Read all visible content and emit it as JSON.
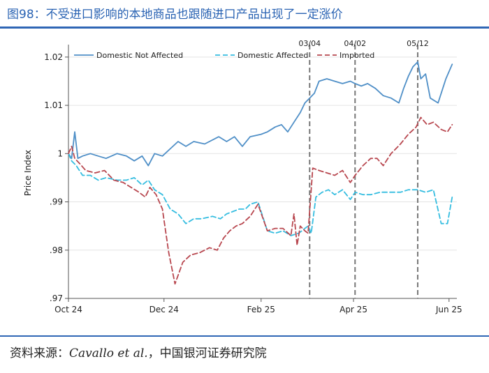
{
  "figure": {
    "title": "图98：不受进口影响的本地商品也跟随进口产品出现了一定涨价",
    "source_prefix": "资料来源：",
    "source_author": "Cavallo et al.",
    "source_suffix": "，中国银河证券研究院"
  },
  "chart_data": {
    "type": "line",
    "ylabel": "Price Index",
    "ylim": [
      0.97,
      1.022
    ],
    "yticks": [
      0.97,
      0.98,
      0.99,
      1.0,
      1.01,
      1.02
    ],
    "ytick_labels": [
      ".97",
      ".98",
      ".99",
      "1",
      "1.01",
      "1.02"
    ],
    "xlim": [
      "2024-10-01",
      "2025-06-06"
    ],
    "xticks": [
      "2024-10-01",
      "2024-12-01",
      "2025-02-01",
      "2025-04-01",
      "2025-06-01"
    ],
    "xtick_labels": [
      "Oct 24",
      "Dec 24",
      "Feb 25",
      "Apr 25",
      "Jun 25"
    ],
    "grid": true,
    "legend_position": "top",
    "vlines": [
      {
        "date": "2025-03-04",
        "label": "03/04"
      },
      {
        "date": "2025-04-02",
        "label": "04/02"
      },
      {
        "date": "2025-05-12",
        "label": "05/12"
      }
    ],
    "series": [
      {
        "name": "Domestic Not Affected",
        "color": "#4f8fc7",
        "style": "solid",
        "x": [
          "2024-10-01",
          "2024-10-03",
          "2024-10-05",
          "2024-10-07",
          "2024-10-10",
          "2024-10-15",
          "2024-10-20",
          "2024-10-25",
          "2024-11-01",
          "2024-11-07",
          "2024-11-12",
          "2024-11-17",
          "2024-11-21",
          "2024-11-25",
          "2024-11-30",
          "2024-12-05",
          "2024-12-10",
          "2024-12-15",
          "2024-12-20",
          "2024-12-27",
          "2025-01-05",
          "2025-01-10",
          "2025-01-15",
          "2025-01-20",
          "2025-01-25",
          "2025-02-01",
          "2025-02-05",
          "2025-02-10",
          "2025-02-14",
          "2025-02-18",
          "2025-02-22",
          "2025-02-26",
          "2025-03-01",
          "2025-03-04",
          "2025-03-07",
          "2025-03-10",
          "2025-03-15",
          "2025-03-20",
          "2025-03-25",
          "2025-03-30",
          "2025-04-02",
          "2025-04-06",
          "2025-04-10",
          "2025-04-15",
          "2025-04-20",
          "2025-04-25",
          "2025-04-30",
          "2025-05-03",
          "2025-05-06",
          "2025-05-09",
          "2025-05-12",
          "2025-05-14",
          "2025-05-17",
          "2025-05-20",
          "2025-05-25",
          "2025-05-30",
          "2025-06-03"
        ],
        "values": [
          1.0,
          0.999,
          1.0045,
          0.999,
          0.9995,
          1.0,
          0.9995,
          0.999,
          1.0,
          0.9995,
          0.9985,
          0.9995,
          0.9975,
          1.0,
          0.9995,
          1.001,
          1.0025,
          1.0015,
          1.0025,
          1.002,
          1.0035,
          1.0025,
          1.0035,
          1.0015,
          1.0035,
          1.004,
          1.0045,
          1.0055,
          1.006,
          1.0045,
          1.0065,
          1.0085,
          1.0105,
          1.0115,
          1.0125,
          1.015,
          1.0155,
          1.015,
          1.0145,
          1.015,
          1.0145,
          1.014,
          1.0145,
          1.0135,
          1.012,
          1.0115,
          1.0105,
          1.0135,
          1.016,
          1.018,
          1.019,
          1.0155,
          1.0165,
          1.0115,
          1.0105,
          1.0155,
          1.0185
        ]
      },
      {
        "name": "Domestic Affected",
        "color": "#35bde0",
        "style": "dashed",
        "x": [
          "2024-10-01",
          "2024-10-03",
          "2024-10-06",
          "2024-10-10",
          "2024-10-15",
          "2024-10-20",
          "2024-10-25",
          "2024-11-01",
          "2024-11-07",
          "2024-11-12",
          "2024-11-17",
          "2024-11-21",
          "2024-11-25",
          "2024-11-30",
          "2024-12-05",
          "2024-12-10",
          "2024-12-15",
          "2024-12-20",
          "2024-12-25",
          "2025-01-01",
          "2025-01-06",
          "2025-01-10",
          "2025-01-14",
          "2025-01-18",
          "2025-01-22",
          "2025-01-25",
          "2025-01-30",
          "2025-02-05",
          "2025-02-10",
          "2025-02-15",
          "2025-02-20",
          "2025-02-25",
          "2025-03-01",
          "2025-03-03",
          "2025-03-05",
          "2025-03-08",
          "2025-03-12",
          "2025-03-16",
          "2025-03-20",
          "2025-03-25",
          "2025-03-30",
          "2025-04-02",
          "2025-04-07",
          "2025-04-12",
          "2025-04-18",
          "2025-04-25",
          "2025-05-01",
          "2025-05-06",
          "2025-05-12",
          "2025-05-17",
          "2025-05-22",
          "2025-05-27",
          "2025-05-31",
          "2025-06-03"
        ],
        "values": [
          1.0,
          0.9985,
          0.9975,
          0.9955,
          0.9955,
          0.9945,
          0.995,
          0.9945,
          0.9945,
          0.995,
          0.9935,
          0.9945,
          0.9925,
          0.9915,
          0.9885,
          0.9875,
          0.9855,
          0.9865,
          0.9865,
          0.987,
          0.9865,
          0.9875,
          0.988,
          0.9885,
          0.9885,
          0.9895,
          0.99,
          0.984,
          0.9835,
          0.984,
          0.983,
          0.9835,
          0.9845,
          0.985,
          0.9835,
          0.991,
          0.992,
          0.9925,
          0.9915,
          0.9925,
          0.9905,
          0.992,
          0.9915,
          0.9915,
          0.992,
          0.992,
          0.992,
          0.9925,
          0.9925,
          0.992,
          0.9925,
          0.9855,
          0.9855,
          0.991
        ]
      },
      {
        "name": "Imported",
        "color": "#b8474f",
        "style": "dashed",
        "x": [
          "2024-10-01",
          "2024-10-03",
          "2024-10-05",
          "2024-10-08",
          "2024-10-12",
          "2024-10-18",
          "2024-10-24",
          "2024-10-30",
          "2024-11-05",
          "2024-11-10",
          "2024-11-15",
          "2024-11-19",
          "2024-11-22",
          "2024-11-26",
          "2024-11-30",
          "2024-12-04",
          "2024-12-08",
          "2024-12-13",
          "2024-12-18",
          "2024-12-24",
          "2024-12-30",
          "2025-01-04",
          "2025-01-08",
          "2025-01-12",
          "2025-01-16",
          "2025-01-20",
          "2025-01-25",
          "2025-01-30",
          "2025-02-05",
          "2025-02-10",
          "2025-02-15",
          "2025-02-20",
          "2025-02-22",
          "2025-02-24",
          "2025-02-26",
          "2025-03-01",
          "2025-03-03",
          "2025-03-06",
          "2025-03-10",
          "2025-03-15",
          "2025-03-20",
          "2025-03-25",
          "2025-03-30",
          "2025-04-02",
          "2025-04-07",
          "2025-04-12",
          "2025-04-16",
          "2025-04-20",
          "2025-04-25",
          "2025-05-01",
          "2025-05-06",
          "2025-05-11",
          "2025-05-14",
          "2025-05-18",
          "2025-05-22",
          "2025-05-27",
          "2025-05-31",
          "2025-06-03"
        ],
        "values": [
          1.0,
          1.0015,
          0.999,
          0.998,
          0.9965,
          0.996,
          0.9965,
          0.9945,
          0.994,
          0.993,
          0.992,
          0.991,
          0.993,
          0.9915,
          0.9885,
          0.9795,
          0.973,
          0.9775,
          0.979,
          0.9795,
          0.9805,
          0.98,
          0.9825,
          0.984,
          0.985,
          0.9855,
          0.987,
          0.9895,
          0.984,
          0.9845,
          0.9845,
          0.983,
          0.9875,
          0.981,
          0.985,
          0.984,
          0.9835,
          0.997,
          0.9965,
          0.996,
          0.9955,
          0.9965,
          0.994,
          0.9955,
          0.9975,
          0.999,
          0.999,
          0.9975,
          1.0,
          1.002,
          1.004,
          1.0055,
          1.0075,
          1.006,
          1.0065,
          1.005,
          1.0045,
          1.006
        ]
      }
    ]
  }
}
